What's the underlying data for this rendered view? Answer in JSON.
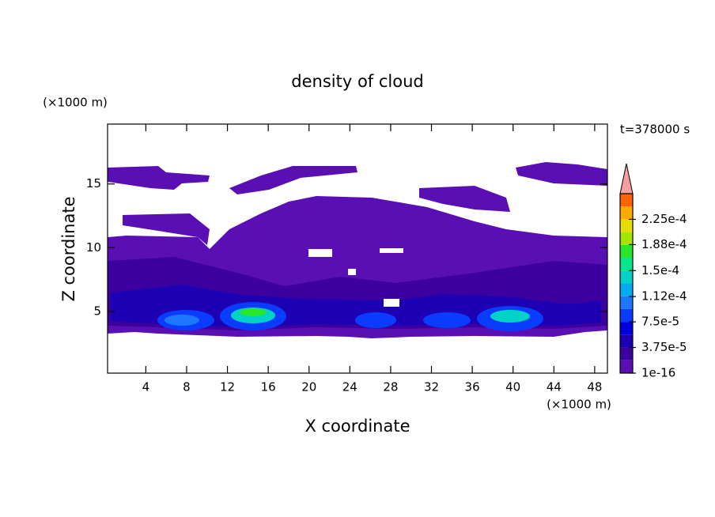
{
  "chart_data": {
    "type": "contour",
    "title": "density of cloud",
    "x_label": "X coordinate",
    "y_label": "Z coordinate",
    "x_units": "(×1000 m)",
    "y_units": "(×1000 m)",
    "time_label": "t=378000 s",
    "xlim": [
      0.25,
      49.25
    ],
    "xticks": [
      4,
      8,
      12,
      16,
      20,
      24,
      28,
      32,
      36,
      40,
      44,
      48
    ],
    "ylim": [
      0.15,
      19.7
    ],
    "yticks": [
      5,
      10,
      15
    ],
    "colorbar": {
      "clim": [
        0,
        0.0002625
      ],
      "levels": [
        {
          "value": 1e-16,
          "label": "1e-16"
        },
        {
          "value": 3.75e-05,
          "label": "3.75e-5"
        },
        {
          "value": 7.5e-05,
          "label": "7.5e-5"
        },
        {
          "value": 0.000112,
          "label": "1.12e-4"
        },
        {
          "value": 0.00015,
          "label": "1.5e-4"
        },
        {
          "value": 0.000188,
          "label": "1.88e-4"
        },
        {
          "value": 0.000225,
          "label": "2.25e-4"
        }
      ],
      "colors": [
        "#5a0fb4",
        "#3c00a0",
        "#1e00b4",
        "#0000dc",
        "#0a3cff",
        "#1e78ff",
        "#00aaf0",
        "#00d2c8",
        "#00e68c",
        "#28e628",
        "#a0e600",
        "#e6dc00",
        "#ffaa00",
        "#ff6400"
      ],
      "extend_color": "#f4a0a0"
    }
  }
}
